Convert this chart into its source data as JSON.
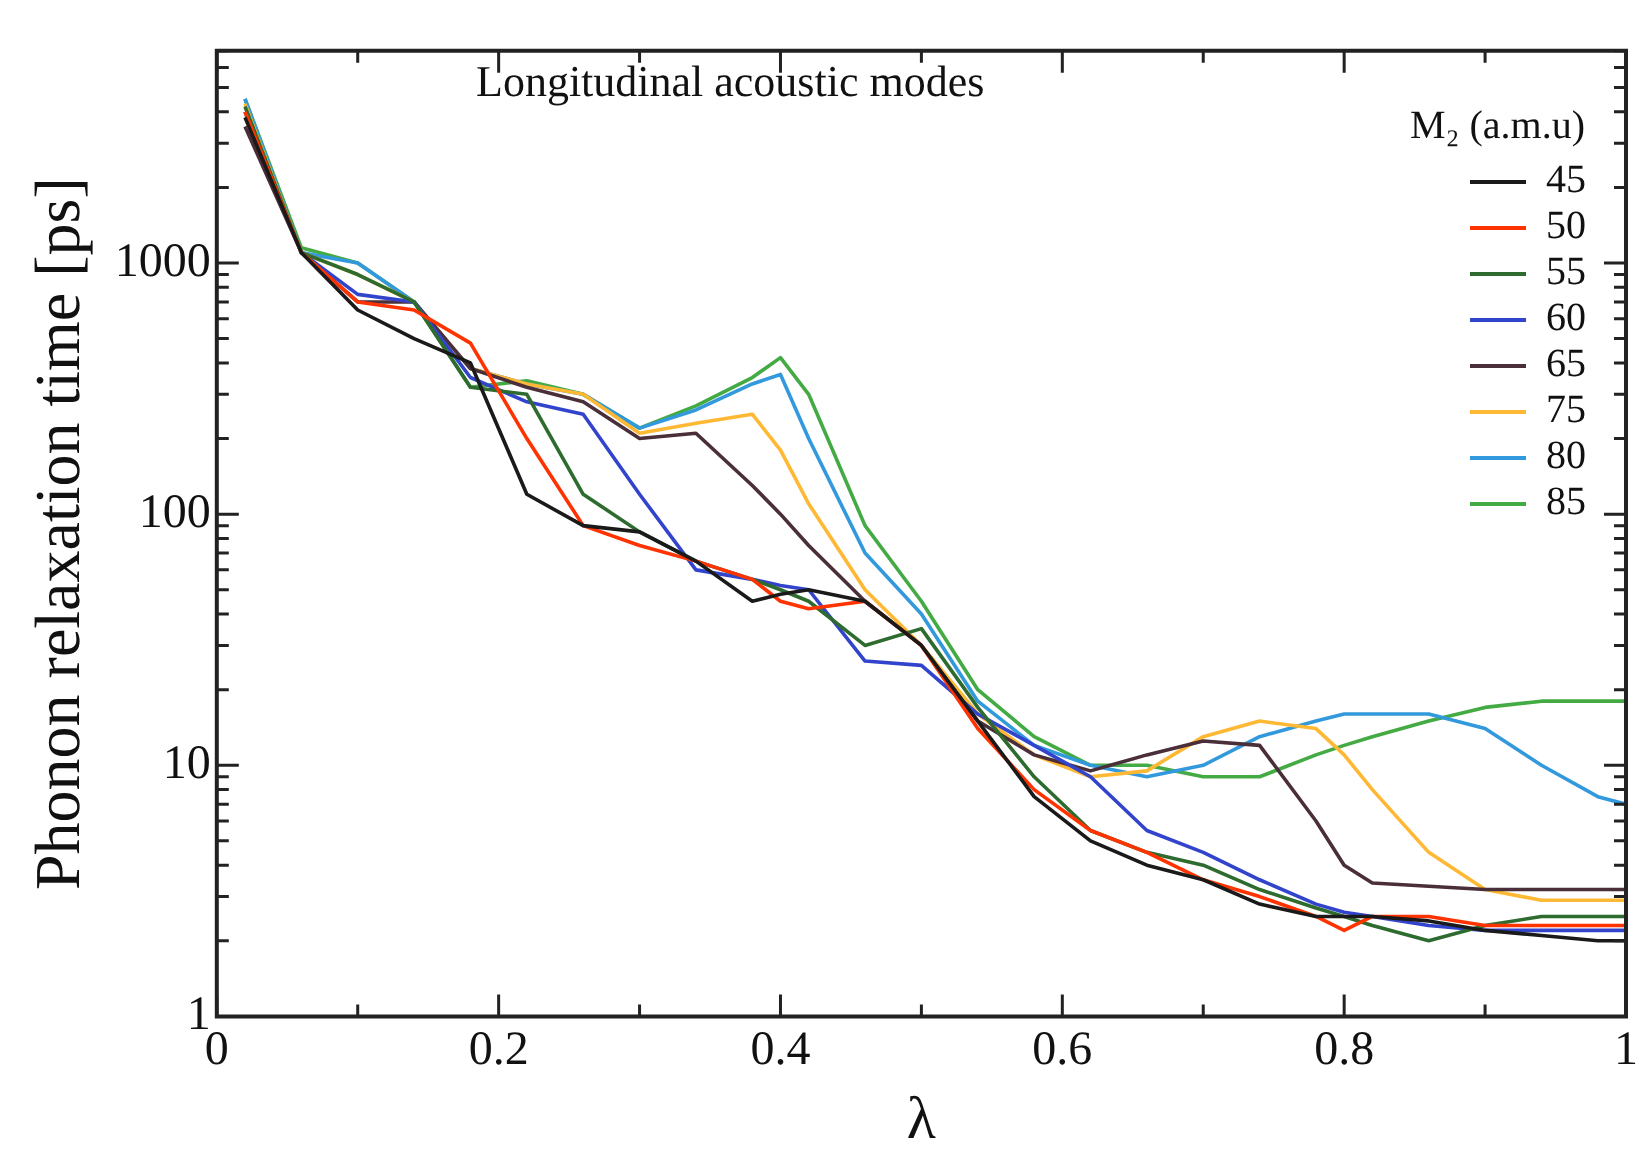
{
  "chart_data": {
    "type": "line",
    "title": "Longitudinal acoustic modes",
    "xlabel": "λ",
    "ylabel": "Phonon relaxation time [ps]",
    "legend_title": "M₂ (a.m.u)",
    "legend": "top right",
    "log": "y",
    "grid": false,
    "marker": "none",
    "line_style": "solid",
    "x": [
      0.02,
      0.06,
      0.1,
      0.14,
      0.18,
      0.22,
      0.26,
      0.3,
      0.34,
      0.38,
      0.4,
      0.42,
      0.46,
      0.5,
      0.54,
      0.58,
      0.62,
      0.66,
      0.7,
      0.74,
      0.78,
      0.8,
      0.82,
      0.86,
      0.9,
      0.94,
      0.98,
      1.0
    ],
    "xlim": [
      0,
      1
    ],
    "xticks": [
      0,
      {
        "value": 0.1,
        "label": null
      },
      0.2,
      {
        "value": 0.3,
        "label": null
      },
      0.4,
      {
        "value": 0.5,
        "label": null
      },
      0.6,
      {
        "value": 0.7,
        "label": null
      },
      0.8,
      {
        "value": 0.9,
        "label": null
      },
      1
    ],
    "ylim": [
      1,
      7000
    ],
    "yticks": [
      1,
      {
        "value": 2,
        "label": null
      },
      {
        "value": 3,
        "label": null
      },
      {
        "value": 4,
        "label": null
      },
      {
        "value": 5,
        "label": null
      },
      {
        "value": 6,
        "label": null
      },
      {
        "value": 7,
        "label": null
      },
      {
        "value": 8,
        "label": null
      },
      {
        "value": 9,
        "label": null
      },
      10,
      {
        "value": 20,
        "label": null
      },
      {
        "value": 30,
        "label": null
      },
      {
        "value": 40,
        "label": null
      },
      {
        "value": 50,
        "label": null
      },
      {
        "value": 60,
        "label": null
      },
      {
        "value": 70,
        "label": null
      },
      {
        "value": 80,
        "label": null
      },
      {
        "value": 90,
        "label": null
      },
      100,
      {
        "value": 200,
        "label": null
      },
      {
        "value": 300,
        "label": null
      },
      {
        "value": 400,
        "label": null
      },
      {
        "value": 500,
        "label": null
      },
      {
        "value": 600,
        "label": null
      },
      {
        "value": 700,
        "label": null
      },
      {
        "value": 800,
        "label": null
      },
      {
        "value": 900,
        "label": null
      },
      1000,
      {
        "value": 2000,
        "label": null
      },
      {
        "value": 3000,
        "label": null
      },
      {
        "value": 4000,
        "label": null
      },
      {
        "value": 5000,
        "label": null
      },
      {
        "value": 6000,
        "label": null
      },
      {
        "value": 7000,
        "label": null
      }
    ],
    "series": [
      {
        "name": "45",
        "color": "#1a1a1a",
        "values": [
          3800,
          1100,
          650,
          500,
          400,
          120,
          90,
          85,
          65,
          45,
          48,
          50,
          45,
          30,
          15,
          7.5,
          5,
          4,
          3.5,
          2.8,
          2.5,
          2.5,
          2.5,
          2.4,
          2.2,
          2.1,
          2.0,
          2.0
        ]
      },
      {
        "name": "50",
        "color": "#ff3300",
        "values": [
          4000,
          1100,
          700,
          650,
          480,
          200,
          90,
          75,
          65,
          55,
          45,
          42,
          45,
          30,
          14,
          8,
          5.5,
          4.5,
          3.5,
          3,
          2.5,
          2.2,
          2.5,
          2.5,
          2.3,
          2.3,
          2.3,
          2.3
        ]
      },
      {
        "name": "55",
        "color": "#2e6b2e",
        "values": [
          4200,
          1100,
          900,
          700,
          320,
          300,
          120,
          85,
          65,
          55,
          50,
          45,
          30,
          35,
          17,
          9,
          5.5,
          4.5,
          4,
          3.2,
          2.7,
          2.5,
          2.3,
          2.0,
          2.3,
          2.5,
          2.5,
          2.5
        ]
      },
      {
        "name": "60",
        "color": "#3344cc",
        "values": [
          4000,
          1100,
          750,
          700,
          350,
          280,
          250,
          120,
          60,
          55,
          52,
          50,
          26,
          25,
          16,
          12,
          9,
          5.5,
          4.5,
          3.5,
          2.8,
          2.6,
          2.5,
          2.3,
          2.2,
          2.2,
          2.2,
          2.2
        ]
      },
      {
        "name": "65",
        "color": "#4a2e3a",
        "values": [
          3500,
          1100,
          700,
          700,
          380,
          320,
          280,
          200,
          210,
          130,
          100,
          75,
          45,
          30,
          15,
          11,
          9.5,
          11,
          12.5,
          12,
          6,
          4,
          3.4,
          3.3,
          3.2,
          3.2,
          3.2,
          3.2
        ]
      },
      {
        "name": "75",
        "color": "#ffb833",
        "values": [
          4300,
          1100,
          900,
          700,
          380,
          330,
          300,
          210,
          230,
          250,
          180,
          110,
          50,
          30,
          16,
          11,
          9,
          9.5,
          13,
          15,
          14,
          11,
          8,
          4.5,
          3.2,
          2.9,
          2.9,
          2.9
        ]
      },
      {
        "name": "80",
        "color": "#3399dd",
        "values": [
          4500,
          1100,
          1000,
          700,
          380,
          330,
          300,
          220,
          260,
          330,
          360,
          200,
          70,
          40,
          18,
          12,
          10,
          9,
          10,
          13,
          15,
          16,
          16,
          16,
          14,
          10,
          7.5,
          7
        ]
      },
      {
        "name": "85",
        "color": "#44aa44",
        "values": [
          4500,
          1150,
          1000,
          700,
          320,
          340,
          300,
          220,
          270,
          350,
          420,
          300,
          90,
          45,
          20,
          13,
          10,
          10,
          9,
          9,
          11,
          12,
          13,
          15,
          17,
          18,
          18,
          18
        ]
      }
    ]
  }
}
